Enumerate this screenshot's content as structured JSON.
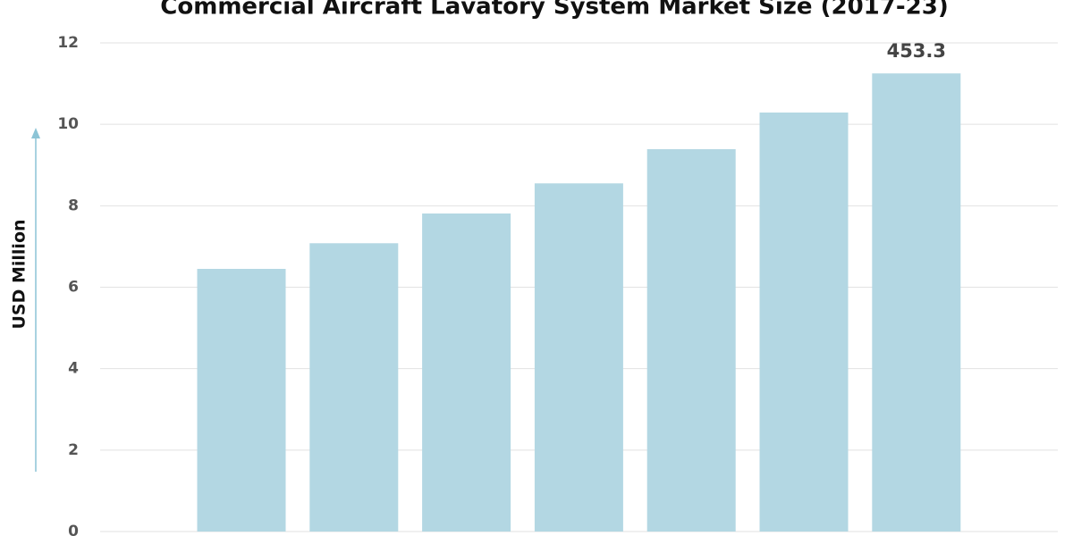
{
  "chart_data": {
    "type": "bar",
    "title": "Commercial Aircraft Lavatory System Market Size (2017-23)",
    "y_label": "USD Million",
    "annotation": "453.3",
    "categories": [
      null,
      null,
      null,
      null,
      null,
      null,
      null
    ],
    "values": [
      6.45,
      7.08,
      7.81,
      8.55,
      9.39,
      10.29,
      11.25
    ],
    "color": "#b3d7e3",
    "ylim": [
      0,
      12
    ],
    "yticks": [
      0,
      2,
      4,
      6,
      8,
      10,
      12
    ],
    "grid": true
  }
}
